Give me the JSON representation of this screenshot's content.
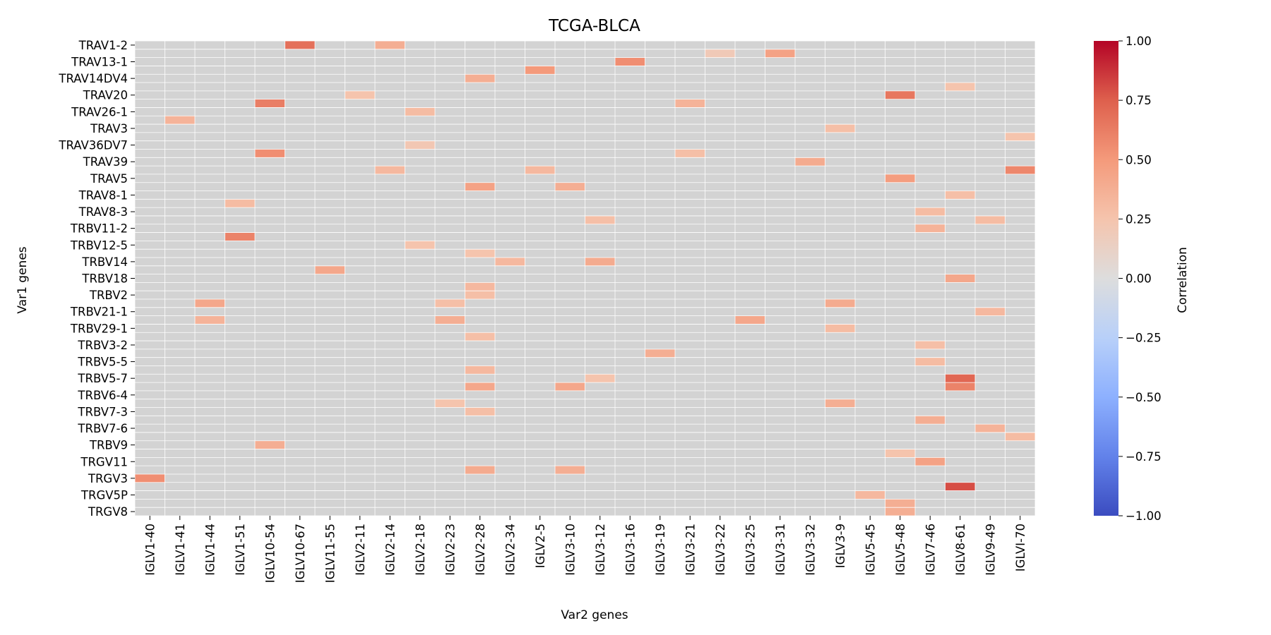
{
  "chart_data": {
    "type": "heatmap",
    "title": "TCGA-BLCA",
    "xlabel": "Var2 genes",
    "ylabel": "Var1 genes",
    "colorbar_label": "Correlation",
    "colormap": "coolwarm",
    "vmin": -1.0,
    "vmax": 1.0,
    "missing_color": "#d3d3d3",
    "grid_lines": "white",
    "colorbar_ticks": [
      "1.00",
      "0.75",
      "0.50",
      "0.25",
      "0.00",
      "−0.25",
      "−0.50",
      "−0.75",
      "−1.00"
    ],
    "x_categories": [
      "IGLV1-40",
      "IGLV1-41",
      "IGLV1-44",
      "IGLV1-51",
      "IGLV10-54",
      "IGLV10-67",
      "IGLV11-55",
      "IGLV2-11",
      "IGLV2-14",
      "IGLV2-18",
      "IGLV2-23",
      "IGLV2-28",
      "IGLV2-34",
      "IGLV2-5",
      "IGLV3-10",
      "IGLV3-12",
      "IGLV3-16",
      "IGLV3-19",
      "IGLV3-21",
      "IGLV3-22",
      "IGLV3-25",
      "IGLV3-31",
      "IGLV3-32",
      "IGLV3-9",
      "IGLV5-45",
      "IGLV5-48",
      "IGLV7-46",
      "IGLV8-61",
      "IGLV9-49",
      "IGLVI-70"
    ],
    "y_labels": [
      "TRAV1-2",
      "TRAV13-1",
      "TRAV14DV4",
      "TRAV20",
      "TRAV26-1",
      "TRAV3",
      "TRAV36DV7",
      "TRAV39",
      "TRAV5",
      "TRAV8-1",
      "TRAV8-3",
      "TRBV11-2",
      "TRBV12-5",
      "TRBV14",
      "TRBV18",
      "TRBV2",
      "TRBV21-1",
      "TRBV29-1",
      "TRBV3-2",
      "TRBV5-5",
      "TRBV5-7",
      "TRBV6-4",
      "TRBV7-3",
      "TRBV7-6",
      "TRBV9",
      "TRGV11",
      "TRGV3",
      "TRGV5P",
      "TRGV8"
    ],
    "n_rows": 57,
    "cells": [
      {
        "row": 0,
        "col": 5,
        "value": 0.68
      },
      {
        "row": 0,
        "col": 8,
        "value": 0.38
      },
      {
        "row": 1,
        "col": 19,
        "value": 0.2
      },
      {
        "row": 1,
        "col": 21,
        "value": 0.45
      },
      {
        "row": 2,
        "col": 16,
        "value": 0.55
      },
      {
        "row": 3,
        "col": 13,
        "value": 0.5
      },
      {
        "row": 4,
        "col": 11,
        "value": 0.38
      },
      {
        "row": 5,
        "col": 27,
        "value": 0.25
      },
      {
        "row": 6,
        "col": 7,
        "value": 0.25
      },
      {
        "row": 6,
        "col": 25,
        "value": 0.65
      },
      {
        "row": 7,
        "col": 4,
        "value": 0.62
      },
      {
        "row": 7,
        "col": 18,
        "value": 0.35
      },
      {
        "row": 8,
        "col": 9,
        "value": 0.3
      },
      {
        "row": 9,
        "col": 1,
        "value": 0.35
      },
      {
        "row": 10,
        "col": 23,
        "value": 0.28
      },
      {
        "row": 11,
        "col": 29,
        "value": 0.25
      },
      {
        "row": 12,
        "col": 9,
        "value": 0.22
      },
      {
        "row": 13,
        "col": 4,
        "value": 0.55
      },
      {
        "row": 13,
        "col": 18,
        "value": 0.28
      },
      {
        "row": 14,
        "col": 22,
        "value": 0.4
      },
      {
        "row": 15,
        "col": 8,
        "value": 0.32
      },
      {
        "row": 15,
        "col": 13,
        "value": 0.32
      },
      {
        "row": 15,
        "col": 29,
        "value": 0.58
      },
      {
        "row": 16,
        "col": 25,
        "value": 0.48
      },
      {
        "row": 17,
        "col": 11,
        "value": 0.45
      },
      {
        "row": 17,
        "col": 14,
        "value": 0.38
      },
      {
        "row": 18,
        "col": 27,
        "value": 0.28
      },
      {
        "row": 19,
        "col": 3,
        "value": 0.3
      },
      {
        "row": 20,
        "col": 26,
        "value": 0.3
      },
      {
        "row": 21,
        "col": 15,
        "value": 0.28
      },
      {
        "row": 21,
        "col": 28,
        "value": 0.3
      },
      {
        "row": 22,
        "col": 26,
        "value": 0.35
      },
      {
        "row": 23,
        "col": 3,
        "value": 0.6
      },
      {
        "row": 24,
        "col": 9,
        "value": 0.25
      },
      {
        "row": 25,
        "col": 11,
        "value": 0.25
      },
      {
        "row": 26,
        "col": 12,
        "value": 0.32
      },
      {
        "row": 26,
        "col": 15,
        "value": 0.4
      },
      {
        "row": 27,
        "col": 6,
        "value": 0.42
      },
      {
        "row": 28,
        "col": 27,
        "value": 0.42
      },
      {
        "row": 29,
        "col": 11,
        "value": 0.32
      },
      {
        "row": 30,
        "col": 11,
        "value": 0.28
      },
      {
        "row": 31,
        "col": 2,
        "value": 0.42
      },
      {
        "row": 31,
        "col": 10,
        "value": 0.28
      },
      {
        "row": 31,
        "col": 23,
        "value": 0.4
      },
      {
        "row": 32,
        "col": 28,
        "value": 0.32
      },
      {
        "row": 33,
        "col": 2,
        "value": 0.35
      },
      {
        "row": 33,
        "col": 10,
        "value": 0.38
      },
      {
        "row": 33,
        "col": 20,
        "value": 0.42
      },
      {
        "row": 34,
        "col": 23,
        "value": 0.3
      },
      {
        "row": 35,
        "col": 11,
        "value": 0.28
      },
      {
        "row": 36,
        "col": 26,
        "value": 0.28
      },
      {
        "row": 37,
        "col": 17,
        "value": 0.38
      },
      {
        "row": 38,
        "col": 26,
        "value": 0.3
      },
      {
        "row": 39,
        "col": 11,
        "value": 0.32
      },
      {
        "row": 40,
        "col": 15,
        "value": 0.25
      },
      {
        "row": 40,
        "col": 27,
        "value": 0.72
      },
      {
        "row": 41,
        "col": 11,
        "value": 0.42
      },
      {
        "row": 41,
        "col": 14,
        "value": 0.42
      },
      {
        "row": 41,
        "col": 27,
        "value": 0.6
      },
      {
        "row": 43,
        "col": 10,
        "value": 0.25
      },
      {
        "row": 43,
        "col": 23,
        "value": 0.38
      },
      {
        "row": 44,
        "col": 11,
        "value": 0.28
      },
      {
        "row": 45,
        "col": 26,
        "value": 0.38
      },
      {
        "row": 46,
        "col": 28,
        "value": 0.35
      },
      {
        "row": 47,
        "col": 29,
        "value": 0.3
      },
      {
        "row": 48,
        "col": 4,
        "value": 0.38
      },
      {
        "row": 49,
        "col": 25,
        "value": 0.25
      },
      {
        "row": 50,
        "col": 26,
        "value": 0.45
      },
      {
        "row": 51,
        "col": 11,
        "value": 0.4
      },
      {
        "row": 51,
        "col": 14,
        "value": 0.38
      },
      {
        "row": 52,
        "col": 0,
        "value": 0.55
      },
      {
        "row": 53,
        "col": 27,
        "value": 0.8
      },
      {
        "row": 54,
        "col": 24,
        "value": 0.32
      },
      {
        "row": 55,
        "col": 25,
        "value": 0.38
      },
      {
        "row": 56,
        "col": 25,
        "value": 0.38
      }
    ]
  }
}
